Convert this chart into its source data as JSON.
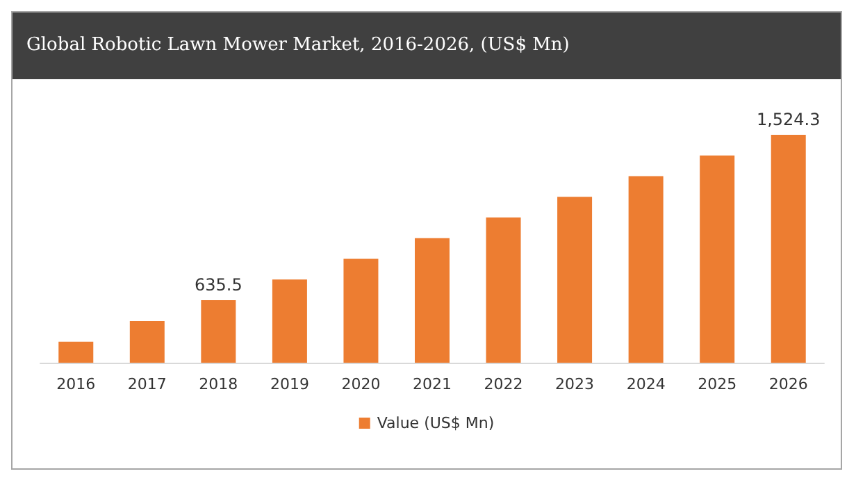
{
  "chart_data": {
    "type": "bar",
    "title": "Global Robotic Lawn Mower Market, 2016-2026, (US$ Mn)",
    "categories": [
      "2016",
      "2017",
      "2018",
      "2019",
      "2020",
      "2021",
      "2022",
      "2023",
      "2024",
      "2025",
      "2026"
    ],
    "series": [
      {
        "name": "Value (US$ Mn)",
        "color": "#ed7d31",
        "values": [
          413,
          524,
          635.5,
          747,
          858,
          969,
          1080,
          1191,
          1302,
          1413,
          1524.3
        ],
        "value_labels": [
          null,
          null,
          "635.5",
          null,
          null,
          null,
          null,
          null,
          null,
          null,
          "1,524.3"
        ]
      }
    ],
    "ylim": [
      300,
      1524.3
    ],
    "legend": "bottom"
  }
}
